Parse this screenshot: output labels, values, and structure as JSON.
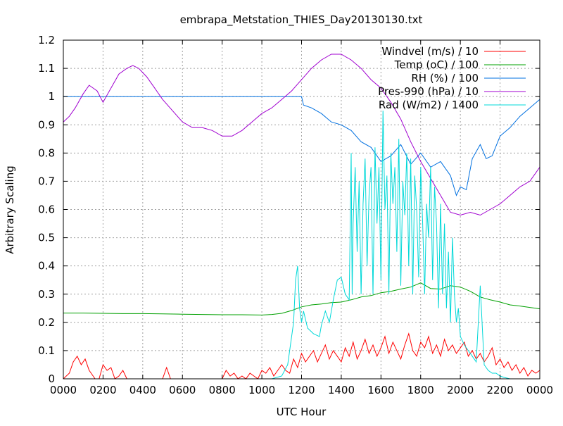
{
  "chart_data": {
    "type": "line",
    "title": "embrapa_Metstation_THIES_Day20130130.txt",
    "xlabel": "UTC Hour",
    "ylabel": "Arbitrary Scaling",
    "xlim": [
      0,
      24
    ],
    "ylim": [
      0,
      1.2
    ],
    "grid": true,
    "legend_position": "top-right",
    "x_ticks": [
      0,
      2,
      4,
      6,
      8,
      10,
      12,
      14,
      16,
      18,
      20,
      22,
      24
    ],
    "x_tick_labels": [
      "0000",
      "0200",
      "0400",
      "0600",
      "0800",
      "1000",
      "1200",
      "1400",
      "1600",
      "1800",
      "2000",
      "2200",
      "0000"
    ],
    "y_ticks": [
      0,
      0.1,
      0.2,
      0.3,
      0.4,
      0.5,
      0.6,
      0.7,
      0.8,
      0.9,
      1,
      1.1,
      1.2
    ],
    "y_tick_labels": [
      "0",
      "0.1",
      "0.2",
      "0.3",
      "0.4",
      "0.5",
      "0.6",
      "0.7",
      "0.8",
      "0.9",
      "1",
      "1.1",
      "1.2"
    ],
    "series": [
      {
        "name": "Windvel (m/s) / 10",
        "color": "#ff0000",
        "x": [
          0,
          0.3,
          0.5,
          0.7,
          0.9,
          1.1,
          1.3,
          1.6,
          1.8,
          2.0,
          2.2,
          2.4,
          2.6,
          2.8,
          3.0,
          3.2,
          3.4,
          3.6,
          3.8,
          4.0,
          4.2,
          4.4,
          4.6,
          4.8,
          5.0,
          5.2,
          5.4,
          5.6,
          5.8,
          6.0,
          6.5,
          7.0,
          7.5,
          8.0,
          8.2,
          8.4,
          8.6,
          8.8,
          9.0,
          9.2,
          9.4,
          9.6,
          9.8,
          10.0,
          10.2,
          10.4,
          10.6,
          10.8,
          11.0,
          11.2,
          11.4,
          11.6,
          11.8,
          12.0,
          12.2,
          12.4,
          12.6,
          12.8,
          13.0,
          13.2,
          13.4,
          13.6,
          13.8,
          14.0,
          14.2,
          14.4,
          14.6,
          14.8,
          15.0,
          15.2,
          15.4,
          15.6,
          15.8,
          16.0,
          16.2,
          16.4,
          16.6,
          16.8,
          17.0,
          17.2,
          17.4,
          17.6,
          17.8,
          18.0,
          18.2,
          18.4,
          18.6,
          18.8,
          19.0,
          19.2,
          19.4,
          19.6,
          19.8,
          20.0,
          20.2,
          20.4,
          20.6,
          20.8,
          21.0,
          21.2,
          21.4,
          21.6,
          21.8,
          22.0,
          22.2,
          22.4,
          22.6,
          22.8,
          23.0,
          23.2,
          23.4,
          23.6,
          23.8,
          24.0
        ],
        "values": [
          0,
          0.02,
          0.06,
          0.08,
          0.05,
          0.07,
          0.03,
          0,
          0,
          0.05,
          0.03,
          0.04,
          0,
          0.01,
          0.03,
          0,
          0,
          0,
          0,
          0,
          0,
          0,
          0,
          0,
          0,
          0.04,
          0,
          0,
          0,
          0,
          0,
          0,
          0,
          0,
          0.03,
          0.01,
          0.02,
          0,
          0.01,
          0,
          0.02,
          0.01,
          0,
          0.03,
          0.02,
          0.04,
          0.01,
          0.03,
          0.05,
          0.03,
          0.02,
          0.07,
          0.04,
          0.09,
          0.06,
          0.08,
          0.1,
          0.06,
          0.09,
          0.12,
          0.07,
          0.1,
          0.08,
          0.06,
          0.11,
          0.08,
          0.13,
          0.07,
          0.1,
          0.14,
          0.09,
          0.12,
          0.08,
          0.11,
          0.15,
          0.09,
          0.13,
          0.1,
          0.07,
          0.12,
          0.16,
          0.1,
          0.08,
          0.13,
          0.11,
          0.15,
          0.09,
          0.12,
          0.08,
          0.14,
          0.1,
          0.12,
          0.09,
          0.11,
          0.13,
          0.08,
          0.1,
          0.07,
          0.09,
          0.06,
          0.08,
          0.11,
          0.05,
          0.07,
          0.04,
          0.06,
          0.03,
          0.05,
          0.02,
          0.04,
          0.01,
          0.03,
          0.02,
          0.03
        ]
      },
      {
        "name": "Temp (oC) / 100",
        "color": "#00a000",
        "x": [
          0,
          1,
          2,
          3,
          4,
          5,
          6,
          7,
          8,
          9,
          10,
          10.5,
          11,
          11.5,
          12,
          12.5,
          13,
          13.5,
          14,
          14.5,
          15,
          15.5,
          16,
          16.5,
          17,
          17.5,
          18,
          18.5,
          19,
          19.5,
          20,
          20.5,
          21,
          21.5,
          22,
          22.5,
          23,
          23.5,
          24
        ],
        "values": [
          0.233,
          0.233,
          0.232,
          0.231,
          0.231,
          0.23,
          0.229,
          0.228,
          0.227,
          0.227,
          0.226,
          0.228,
          0.232,
          0.242,
          0.255,
          0.262,
          0.265,
          0.27,
          0.272,
          0.28,
          0.29,
          0.295,
          0.305,
          0.31,
          0.318,
          0.325,
          0.34,
          0.32,
          0.318,
          0.33,
          0.325,
          0.31,
          0.29,
          0.28,
          0.272,
          0.262,
          0.258,
          0.253,
          0.248
        ]
      },
      {
        "name": "RH (%) / 100",
        "color": "#0070e0",
        "x": [
          0,
          2,
          4,
          6,
          8,
          10,
          11,
          12,
          12.1,
          12.5,
          13,
          13.5,
          14,
          14.5,
          15,
          15.5,
          16,
          16.5,
          17,
          17.5,
          18,
          18.5,
          19,
          19.5,
          19.8,
          20,
          20.3,
          20.6,
          21,
          21.3,
          21.6,
          22,
          22.5,
          23,
          23.5,
          24
        ],
        "values": [
          1.0,
          1.0,
          1.0,
          1.0,
          1.0,
          1.0,
          1.0,
          1.0,
          0.97,
          0.96,
          0.94,
          0.91,
          0.9,
          0.88,
          0.84,
          0.82,
          0.77,
          0.79,
          0.83,
          0.76,
          0.8,
          0.75,
          0.77,
          0.72,
          0.65,
          0.68,
          0.67,
          0.78,
          0.83,
          0.78,
          0.79,
          0.86,
          0.89,
          0.93,
          0.96,
          0.99
        ]
      },
      {
        "name": "Pres-990 (hPa) / 10",
        "color": "#a000d0",
        "x": [
          0,
          0.3,
          0.6,
          1.0,
          1.3,
          1.7,
          2.0,
          2.4,
          2.8,
          3.2,
          3.5,
          3.8,
          4.2,
          4.6,
          5.0,
          5.5,
          6.0,
          6.5,
          7.0,
          7.5,
          8.0,
          8.5,
          9.0,
          9.5,
          10.0,
          10.5,
          11.0,
          11.5,
          12.0,
          12.5,
          13.0,
          13.5,
          14.0,
          14.5,
          15.0,
          15.5,
          16.0,
          16.5,
          17.0,
          17.5,
          18.0,
          18.5,
          19.0,
          19.5,
          20.0,
          20.5,
          21.0,
          21.5,
          22.0,
          22.5,
          23.0,
          23.5,
          24.0
        ],
        "values": [
          0.91,
          0.93,
          0.96,
          1.01,
          1.04,
          1.02,
          0.98,
          1.03,
          1.08,
          1.1,
          1.11,
          1.1,
          1.07,
          1.03,
          0.99,
          0.95,
          0.91,
          0.89,
          0.89,
          0.88,
          0.86,
          0.86,
          0.88,
          0.91,
          0.94,
          0.96,
          0.99,
          1.02,
          1.06,
          1.1,
          1.13,
          1.15,
          1.15,
          1.13,
          1.1,
          1.06,
          1.03,
          0.98,
          0.92,
          0.84,
          0.77,
          0.71,
          0.65,
          0.59,
          0.58,
          0.59,
          0.58,
          0.6,
          0.62,
          0.65,
          0.68,
          0.7,
          0.75
        ]
      },
      {
        "name": "Rad (W/m2) / 1400",
        "color": "#00d8d8",
        "x": [
          0,
          8,
          10.5,
          11.0,
          11.3,
          11.6,
          11.7,
          11.8,
          11.9,
          12.0,
          12.1,
          12.3,
          12.6,
          12.9,
          13.0,
          13.2,
          13.4,
          13.6,
          13.8,
          14.0,
          14.2,
          14.4,
          14.5,
          14.55,
          14.6,
          14.7,
          14.8,
          14.9,
          15.0,
          15.1,
          15.2,
          15.3,
          15.4,
          15.5,
          15.6,
          15.7,
          15.8,
          15.9,
          16.0,
          16.1,
          16.2,
          16.3,
          16.4,
          16.5,
          16.6,
          16.7,
          16.8,
          16.9,
          17.0,
          17.1,
          17.2,
          17.3,
          17.4,
          17.5,
          17.6,
          17.7,
          17.8,
          17.9,
          18.0,
          18.1,
          18.2,
          18.3,
          18.4,
          18.5,
          18.6,
          18.7,
          18.8,
          18.9,
          19.0,
          19.1,
          19.2,
          19.3,
          19.4,
          19.5,
          19.6,
          19.7,
          19.8,
          19.9,
          20.0,
          20.2,
          20.4,
          20.6,
          20.8,
          21.0,
          21.2,
          21.4,
          21.6,
          21.8,
          22.0,
          22.2,
          22.5,
          23.0,
          24.0
        ],
        "values": [
          0,
          0,
          0,
          0.01,
          0.05,
          0.2,
          0.35,
          0.4,
          0.25,
          0.2,
          0.24,
          0.18,
          0.16,
          0.15,
          0.19,
          0.24,
          0.2,
          0.28,
          0.35,
          0.36,
          0.3,
          0.28,
          0.8,
          0.3,
          0.55,
          0.75,
          0.45,
          0.7,
          0.3,
          0.62,
          0.78,
          0.4,
          0.65,
          0.75,
          0.3,
          0.82,
          0.55,
          0.75,
          0.35,
          0.95,
          0.6,
          0.72,
          0.3,
          0.8,
          0.62,
          0.75,
          0.45,
          0.85,
          0.33,
          0.7,
          0.58,
          0.8,
          0.4,
          0.78,
          0.3,
          0.72,
          0.6,
          0.36,
          0.75,
          0.55,
          0.3,
          0.62,
          0.5,
          0.75,
          0.35,
          0.68,
          0.55,
          0.25,
          0.62,
          0.3,
          0.55,
          0.25,
          0.45,
          0.2,
          0.5,
          0.3,
          0.2,
          0.25,
          0.15,
          0.12,
          0.1,
          0.08,
          0.06,
          0.33,
          0.05,
          0.03,
          0.02,
          0.02,
          0.01,
          0.005,
          0,
          0,
          0
        ]
      }
    ]
  }
}
